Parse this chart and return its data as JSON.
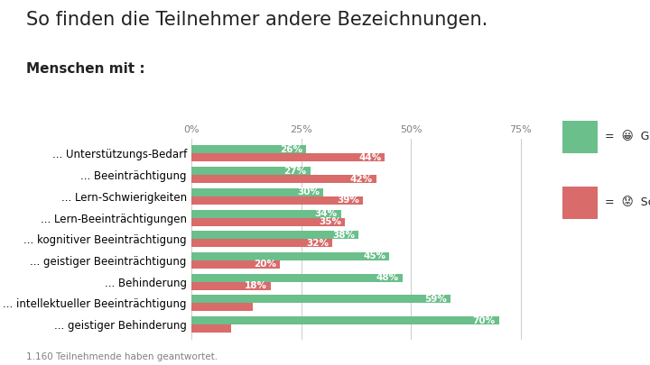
{
  "title": "So finden die Teilnehmer andere Bezeichnungen.",
  "subtitle": "Menschen mit :",
  "footnote": "1.160 Teilnehmende haben geantwortet.",
  "categories": [
    "... Unterstützungs-Bedarf",
    "... Beeinträchtigung",
    "... Lern-Schwierigkeiten",
    "... Lern-Beeinträchtigungen",
    "... kognitiver Beeinträchtigung",
    "... geistiger Beeinträchtigung",
    "... Behinderung",
    "... intellektueller Beeinträchtigung",
    "... geistiger Behinderung"
  ],
  "gut_values": [
    70,
    59,
    48,
    45,
    38,
    34,
    30,
    27,
    26
  ],
  "schlecht_values": [
    9,
    14,
    18,
    20,
    32,
    35,
    39,
    42,
    44
  ],
  "gut_color": "#6abf8b",
  "schlecht_color": "#d96b6b",
  "background_color": "#ffffff",
  "bar_height": 0.38,
  "xlim": [
    0,
    80
  ],
  "xticks": [
    0,
    25,
    50,
    75
  ],
  "xticklabels": [
    "0%",
    "25%",
    "50%",
    "75%"
  ],
  "title_fontsize": 15,
  "subtitle_fontsize": 11,
  "label_fontsize": 8.5,
  "value_fontsize": 7.5,
  "footnote_fontsize": 7.5
}
